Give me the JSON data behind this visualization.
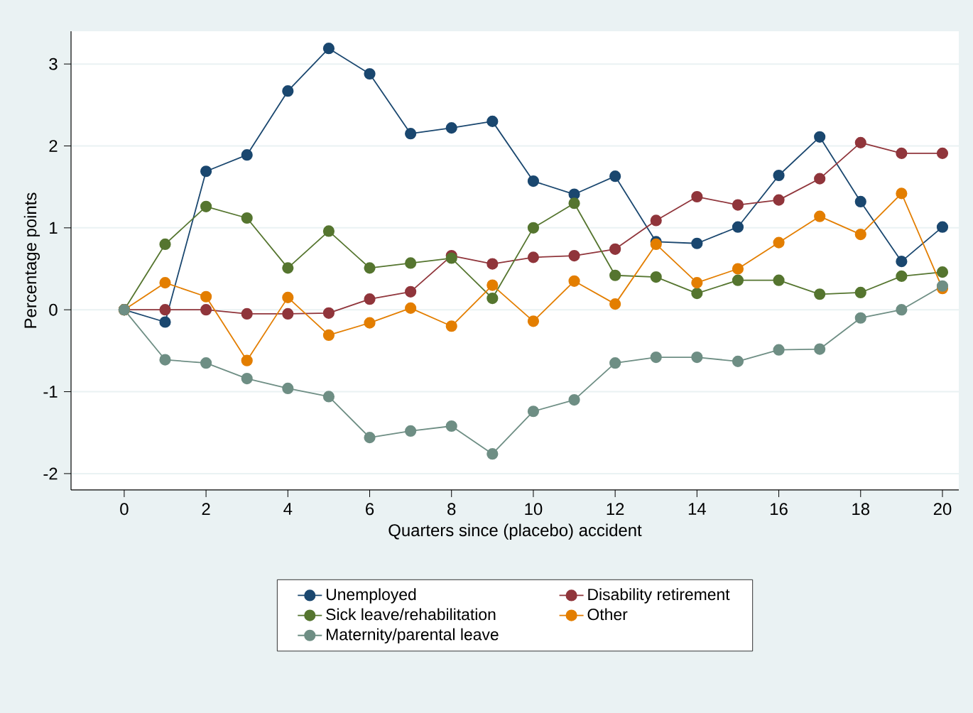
{
  "chart_data": {
    "type": "line",
    "xlabel": "Quarters since (placebo) accident",
    "ylabel": "Percentage points",
    "x": [
      0,
      1,
      2,
      3,
      4,
      5,
      6,
      7,
      8,
      9,
      10,
      11,
      12,
      13,
      14,
      15,
      16,
      17,
      18,
      19,
      20
    ],
    "xlim": [
      -1.3,
      20.4
    ],
    "ylim": [
      -2.2,
      3.4
    ],
    "xticks": [
      0,
      2,
      4,
      6,
      8,
      10,
      12,
      14,
      16,
      18,
      20
    ],
    "yticks": [
      -2,
      -1,
      0,
      1,
      2,
      3
    ],
    "grid": "y",
    "legend": "bottom",
    "marker": "circle",
    "line_style": "solid",
    "series": [
      {
        "name": "Unemployed",
        "color": "#1a476f",
        "values": [
          0,
          -0.15,
          1.69,
          1.89,
          2.67,
          3.19,
          2.88,
          2.15,
          2.22,
          2.3,
          1.57,
          1.41,
          1.63,
          0.83,
          0.81,
          1.01,
          1.64,
          2.11,
          1.32,
          0.59,
          1.01
        ]
      },
      {
        "name": "Disability retirement",
        "color": "#90353b",
        "values": [
          0,
          0,
          0,
          -0.05,
          -0.05,
          -0.04,
          0.13,
          0.22,
          0.66,
          0.56,
          0.64,
          0.66,
          0.74,
          1.09,
          1.38,
          1.28,
          1.34,
          1.6,
          2.04,
          1.91,
          1.91
        ]
      },
      {
        "name": "Sick leave/rehabilitation",
        "color": "#55752f",
        "values": [
          0,
          0.8,
          1.26,
          1.12,
          0.51,
          0.96,
          0.51,
          0.57,
          0.63,
          0.14,
          1.0,
          1.3,
          0.42,
          0.4,
          0.2,
          0.36,
          0.36,
          0.19,
          0.21,
          0.41,
          0.46
        ]
      },
      {
        "name": "Other",
        "color": "#e37e00",
        "values": [
          0,
          0.33,
          0.16,
          -0.62,
          0.15,
          -0.31,
          -0.16,
          0.02,
          -0.2,
          0.3,
          -0.14,
          0.35,
          0.07,
          0.8,
          0.33,
          0.5,
          0.82,
          1.14,
          0.92,
          1.42,
          0.26
        ]
      },
      {
        "name": "Maternity/parental leave",
        "color": "#6e8e84",
        "values": [
          0,
          -0.61,
          -0.65,
          -0.84,
          -0.96,
          -1.06,
          -1.56,
          -1.48,
          -1.42,
          -1.76,
          -1.24,
          -1.1,
          -0.65,
          -0.58,
          -0.58,
          -0.63,
          -0.49,
          -0.48,
          -0.1,
          0.0,
          0.29
        ]
      }
    ]
  }
}
